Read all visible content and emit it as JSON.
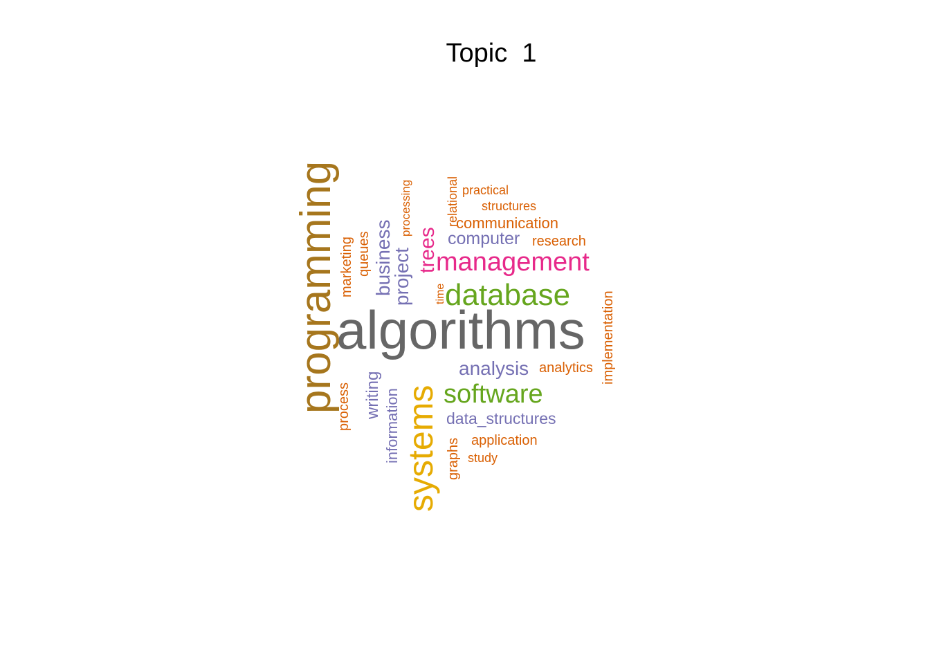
{
  "title": "Topic  1",
  "colors": {
    "gray": "#666666",
    "olive": "#A6761D",
    "gold": "#E6AB02",
    "green": "#66A61E",
    "magenta": "#E7298A",
    "purple": "#7570B3",
    "orange": "#D95F02"
  },
  "words": [
    {
      "text": "algorithms",
      "color": "gray",
      "rotated": false
    },
    {
      "text": "programming",
      "color": "olive",
      "rotated": true
    },
    {
      "text": "systems",
      "color": "gold",
      "rotated": true
    },
    {
      "text": "database",
      "color": "green",
      "rotated": false
    },
    {
      "text": "software",
      "color": "green",
      "rotated": false
    },
    {
      "text": "management",
      "color": "magenta",
      "rotated": false
    },
    {
      "text": "trees",
      "color": "magenta",
      "rotated": true
    },
    {
      "text": "analysis",
      "color": "purple",
      "rotated": false
    },
    {
      "text": "computer",
      "color": "purple",
      "rotated": false
    },
    {
      "text": "data_structures",
      "color": "purple",
      "rotated": false
    },
    {
      "text": "business",
      "color": "purple",
      "rotated": true
    },
    {
      "text": "project",
      "color": "purple",
      "rotated": true
    },
    {
      "text": "writing",
      "color": "purple",
      "rotated": true
    },
    {
      "text": "information",
      "color": "purple",
      "rotated": true
    },
    {
      "text": "communication",
      "color": "orange",
      "rotated": false
    },
    {
      "text": "research",
      "color": "orange",
      "rotated": false
    },
    {
      "text": "analytics",
      "color": "orange",
      "rotated": false
    },
    {
      "text": "application",
      "color": "orange",
      "rotated": false
    },
    {
      "text": "study",
      "color": "orange",
      "rotated": false
    },
    {
      "text": "practical",
      "color": "orange",
      "rotated": false
    },
    {
      "text": "structures",
      "color": "orange",
      "rotated": false
    },
    {
      "text": "processing",
      "color": "orange",
      "rotated": true
    },
    {
      "text": "relational",
      "color": "orange",
      "rotated": true
    },
    {
      "text": "marketing",
      "color": "orange",
      "rotated": true
    },
    {
      "text": "queues",
      "color": "orange",
      "rotated": true
    },
    {
      "text": "time",
      "color": "orange",
      "rotated": true
    },
    {
      "text": "implementation",
      "color": "orange",
      "rotated": true
    },
    {
      "text": "process",
      "color": "orange",
      "rotated": true
    },
    {
      "text": "graphs",
      "color": "orange",
      "rotated": true
    }
  ]
}
